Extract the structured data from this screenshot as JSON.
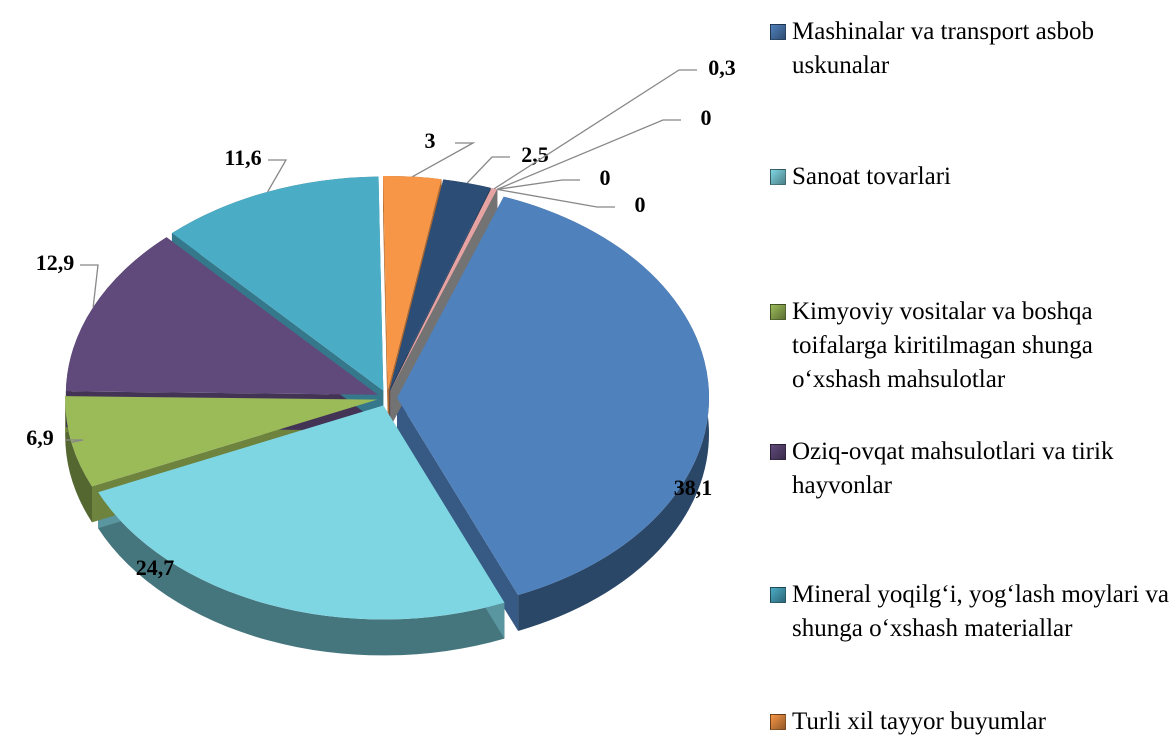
{
  "chart_data": {
    "type": "pie",
    "categories": [
      "Mashinalar va transport asbob uskunalar",
      "Sanoat tovarlari",
      "Kimyoviy vositalar va boshqa toifalarga kiritilmagan shunga o‘xshash mahsulotlar",
      "Oziq-ovqat mahsulotlari va tirik hayvonlar",
      "Mineral yoqilg‘i, yog‘lash moylari va shunga o‘xshash materiallar",
      "Turli xil tayyor buyumlar",
      null,
      null,
      null,
      null,
      null
    ],
    "values": [
      38.1,
      24.7,
      6.9,
      12.9,
      11.6,
      3,
      2.5,
      0.3,
      0,
      0,
      0
    ],
    "value_labels": [
      "38,1",
      "24,7",
      "6,9",
      "12,9",
      "11,6",
      "3",
      "2,5",
      "0,3",
      "0",
      "0",
      "0"
    ],
    "colors": [
      "#4f81bd",
      "#7fd6e3",
      "#9bbb59",
      "#604a7b",
      "#4bacc6",
      "#f79646",
      "#2c4d75",
      "#e6a3a3",
      "#8eb4e3",
      "#c0504d",
      "#a5a5a5"
    ]
  }
}
